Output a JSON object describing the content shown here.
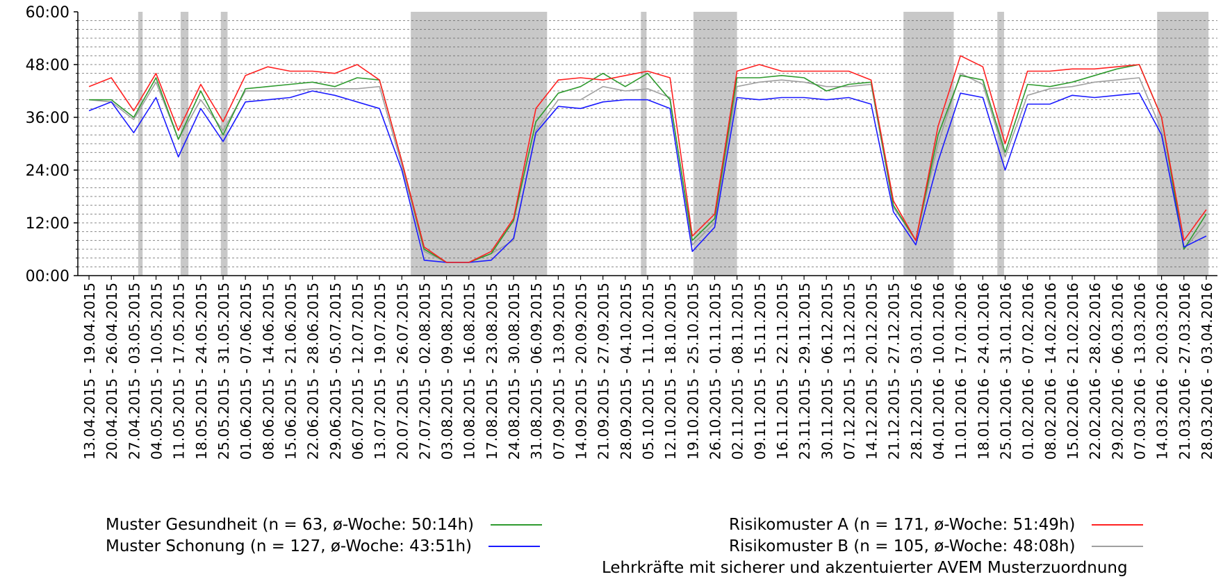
{
  "chart_data": {
    "type": "line",
    "y_tick_labels": [
      "00:00",
      "12:00",
      "24:00",
      "36:00",
      "48:00",
      "60:00"
    ],
    "ylim": [
      0,
      60
    ],
    "x_tick_labels": [
      "13.04.2015 - 19.04.2015",
      "20.04.2015 - 26.04.2015",
      "27.04.2015 - 03.05.2015",
      "04.05.2015 - 10.05.2015",
      "11.05.2015 - 17.05.2015",
      "18.05.2015 - 24.05.2015",
      "25.05.2015 - 31.05.2015",
      "01.06.2015 - 07.06.2015",
      "08.06.2015 - 14.06.2015",
      "15.06.2015 - 21.06.2015",
      "22.06.2015 - 28.06.2015",
      "29.06.2015 - 05.07.2015",
      "06.07.2015 - 12.07.2015",
      "13.07.2015 - 19.07.2015",
      "20.07.2015 - 26.07.2015",
      "27.07.2015 - 02.08.2015",
      "03.08.2015 - 09.08.2015",
      "10.08.2015 - 16.08.2015",
      "17.08.2015 - 23.08.2015",
      "24.08.2015 - 30.08.2015",
      "31.08.2015 - 06.09.2015",
      "07.09.2015 - 13.09.2015",
      "14.09.2015 - 20.09.2015",
      "21.09.2015 - 27.09.2015",
      "28.09.2015 - 04.10.2015",
      "05.10.2015 - 11.10.2015",
      "12.10.2015 - 18.10.2015",
      "19.10.2015 - 25.10.2015",
      "26.10.2015 - 01.11.2015",
      "02.11.2015 - 08.11.2015",
      "09.11.2015 - 15.11.2015",
      "16.11.2015 - 22.11.2015",
      "23.11.2015 - 29.11.2015",
      "30.11.2015 - 06.12.2015",
      "07.12.2015 - 13.12.2015",
      "14.12.2015 - 20.12.2015",
      "21.12.2015 - 27.12.2015",
      "28.12.2015 - 03.01.2016",
      "04.01.2016 - 10.01.2016",
      "11.01.2016 - 17.01.2016",
      "18.01.2016 - 24.01.2016",
      "25.01.2016 - 31.01.2016",
      "01.02.2016 - 07.02.2016",
      "08.02.2016 - 14.02.2016",
      "15.02.2016 - 21.02.2016",
      "22.02.2016 - 28.02.2016",
      "29.02.2016 - 06.03.2016",
      "07.03.2016 - 13.03.2016",
      "14.03.2016 - 20.03.2016",
      "21.03.2016 - 27.03.2016",
      "28.03.2016 - 03.04.2016"
    ],
    "shaded_periods": [
      {
        "from": 2.7,
        "to": 2.9
      },
      {
        "from": 4.6,
        "to": 4.95
      },
      {
        "from": 6.4,
        "to": 6.7
      },
      {
        "from": 14.9,
        "to": 21.0
      },
      {
        "from": 25.2,
        "to": 25.45
      },
      {
        "from": 27.55,
        "to": 29.5
      },
      {
        "from": 36.95,
        "to": 39.2
      },
      {
        "from": 41.15,
        "to": 41.45
      },
      {
        "from": 48.3,
        "to": 50.6
      }
    ],
    "series": [
      {
        "name": "Risikomuster B (n = 105, ø-Woche: 48:08h)",
        "color": "#a0a0a0",
        "values": [
          40,
          39.5,
          35.5,
          44,
          31,
          40,
          33,
          42,
          42,
          42,
          42.5,
          42.5,
          42.5,
          43,
          25,
          5.5,
          3,
          3,
          5,
          8,
          33,
          40,
          40,
          43,
          42,
          42.5,
          40.5,
          7,
          12,
          43,
          44,
          44.5,
          44,
          43,
          43,
          43.5,
          15.5,
          8,
          30,
          46,
          43.5,
          27,
          41,
          42.5,
          43,
          44,
          44.5,
          45,
          33,
          6,
          12
        ]
      },
      {
        "name": "Muster Gesundheit (n = 63, ø-Woche: 50:14h)",
        "color": "#2e9a2e",
        "values": [
          40,
          40,
          36,
          45,
          31,
          42,
          32,
          42.5,
          43,
          43.5,
          44,
          43,
          45,
          44.5,
          26,
          6,
          3,
          3,
          5,
          12.5,
          35,
          41.5,
          43,
          46,
          43,
          46,
          40,
          8,
          13,
          45,
          45,
          45.5,
          45,
          42,
          43.5,
          44,
          16,
          8,
          32,
          45.5,
          44.5,
          28,
          43.5,
          43,
          44,
          45.5,
          47,
          48,
          36,
          6,
          14
        ]
      },
      {
        "name": "Muster Schonung (n = 127, ø-Woche: 43:51h)",
        "color": "#1a1aff",
        "values": [
          37.5,
          39.5,
          32.5,
          40.5,
          27,
          38,
          30.5,
          39.5,
          40,
          40.5,
          42,
          41,
          39.5,
          38,
          24,
          3.5,
          3,
          3,
          3.5,
          8.5,
          32.5,
          38.5,
          38,
          39.5,
          40,
          40,
          38,
          5.5,
          11,
          40.5,
          40,
          40.5,
          40.5,
          40,
          40.5,
          39,
          14.5,
          7,
          26,
          41.5,
          40.5,
          24,
          39,
          39,
          41,
          40.5,
          41,
          41.5,
          32,
          6.5,
          9
        ]
      },
      {
        "name": "Risikomuster A (n = 171, ø-Woche: 51:49h)",
        "color": "#ff2020",
        "values": [
          43,
          45,
          37.5,
          46,
          33,
          43.5,
          35,
          45.5,
          47.5,
          46.5,
          46.5,
          46,
          48,
          44.5,
          26,
          6.5,
          3,
          3,
          5.5,
          13,
          38,
          44.5,
          45,
          44.5,
          45.5,
          46.5,
          45,
          9,
          14,
          46.5,
          48,
          46.5,
          46.5,
          46.5,
          46.5,
          44.5,
          17,
          8,
          34,
          50,
          47.5,
          30,
          46.5,
          46.5,
          47,
          47,
          47.5,
          48,
          36,
          8,
          15
        ]
      }
    ],
    "legend": {
      "left": [
        {
          "label": "Muster Gesundheit (n = 63, ø-Woche: 50:14h)",
          "color": "#2e9a2e"
        },
        {
          "label": "Muster Schonung (n = 127, ø-Woche: 43:51h)",
          "color": "#1a1aff"
        }
      ],
      "right": [
        {
          "label": "Risikomuster A (n = 171, ø-Woche: 51:49h)",
          "color": "#ff2020"
        },
        {
          "label": "Risikomuster B (n = 105, ø-Woche: 48:08h)",
          "color": "#a0a0a0"
        }
      ],
      "footnote": "Lehrkräfte mit sicherer und akzentuierter AVEM Musterzuordnung"
    },
    "grid": true,
    "shade_color": "#c8c8c8"
  }
}
